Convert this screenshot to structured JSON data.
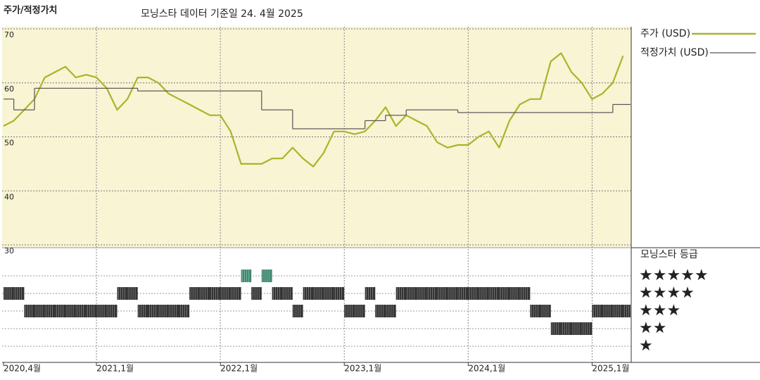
{
  "chart_data": {
    "type": "line",
    "title": "주가/적정가치",
    "subtitle": "모닝스타 데이터 기준일 24. 4월 2025",
    "x": [
      2020.25,
      2020.333,
      2020.417,
      2020.5,
      2020.583,
      2020.667,
      2020.75,
      2020.833,
      2020.917,
      2021,
      2021.083,
      2021.167,
      2021.25,
      2021.333,
      2021.417,
      2021.5,
      2021.583,
      2021.667,
      2021.75,
      2021.833,
      2021.917,
      2022,
      2022.083,
      2022.167,
      2022.25,
      2022.333,
      2022.417,
      2022.5,
      2022.583,
      2022.667,
      2022.75,
      2022.833,
      2022.917,
      2023,
      2023.083,
      2023.167,
      2023.25,
      2023.333,
      2023.417,
      2023.5,
      2023.583,
      2023.667,
      2023.75,
      2023.833,
      2023.917,
      2024,
      2024.083,
      2024.167,
      2024.25,
      2024.333,
      2024.417,
      2024.5,
      2024.583,
      2024.667,
      2024.75,
      2024.833,
      2024.917,
      2025,
      2025.083,
      2025.167,
      2025.25
    ],
    "series": [
      {
        "name": "주가 (USD)",
        "color": "#a8b52a",
        "values": [
          52,
          53,
          55,
          57,
          61,
          62,
          63,
          61,
          61.5,
          61,
          59,
          55,
          57,
          61,
          61,
          60,
          58,
          57,
          56,
          55,
          54,
          54,
          51,
          45,
          45,
          45,
          46,
          46,
          48,
          46,
          44.5,
          47,
          51,
          51,
          50.5,
          51,
          53,
          55.5,
          52,
          54,
          53,
          52,
          49,
          48,
          48.5,
          48.5,
          50,
          51,
          48,
          53,
          56,
          57,
          57,
          64,
          65.5,
          62,
          60,
          57,
          58,
          60,
          65
        ]
      },
      {
        "name": "적정가치 (USD)",
        "color": "#555555",
        "step": true,
        "values": [
          57,
          55,
          55,
          59,
          59,
          59,
          59,
          59,
          59,
          59,
          59,
          59,
          59,
          58.5,
          58.5,
          58.5,
          58.5,
          58.5,
          58.5,
          58.5,
          58.5,
          58.5,
          58.5,
          58.5,
          58.5,
          55,
          55,
          55,
          51.5,
          51.5,
          51.5,
          51.5,
          51.5,
          51.5,
          51.5,
          53,
          53,
          54,
          54,
          55,
          55,
          55,
          55,
          55,
          54.5,
          54.5,
          54.5,
          54.5,
          54.5,
          54.5,
          54.5,
          54.5,
          54.5,
          54.5,
          54.5,
          54.5,
          54.5,
          54.5,
          54.5,
          56,
          56
        ]
      }
    ],
    "ratings": {
      "title": "모닝스타 등급",
      "labels": [
        "★★★★★",
        "★★★★",
        "★★★",
        "★★",
        "★"
      ],
      "colors": [
        "#333333",
        "#333333",
        "#333333",
        "#333333",
        "#3f8a6e"
      ],
      "values": [
        4,
        4,
        3,
        3,
        3,
        3,
        3,
        3,
        3,
        3,
        3,
        4,
        4,
        3,
        3,
        3,
        3,
        3,
        4,
        4,
        4,
        4,
        4,
        5,
        4,
        5,
        4,
        4,
        3,
        4,
        4,
        4,
        4,
        3,
        3,
        4,
        3,
        3,
        4,
        4,
        4,
        4,
        4,
        4,
        4,
        4,
        4,
        4,
        4,
        4,
        4,
        3,
        3,
        2,
        2,
        2,
        2,
        3,
        3,
        3,
        3
      ]
    },
    "xlim": [
      2020.25,
      2025.31
    ],
    "xticks": [
      {
        "value": 2020.25,
        "label": "2020,4월"
      },
      {
        "value": 2021,
        "label": "2021,1월"
      },
      {
        "value": 2022,
        "label": "2022,1월"
      },
      {
        "value": 2023,
        "label": "2023,1월"
      },
      {
        "value": 2024,
        "label": "2024,1월"
      },
      {
        "value": 2025,
        "label": "2025,1월"
      }
    ],
    "ylim": [
      30,
      70
    ],
    "yticks": [
      30,
      40,
      50,
      60,
      70
    ],
    "plot_background": "#f8f4d4",
    "grid": true
  }
}
